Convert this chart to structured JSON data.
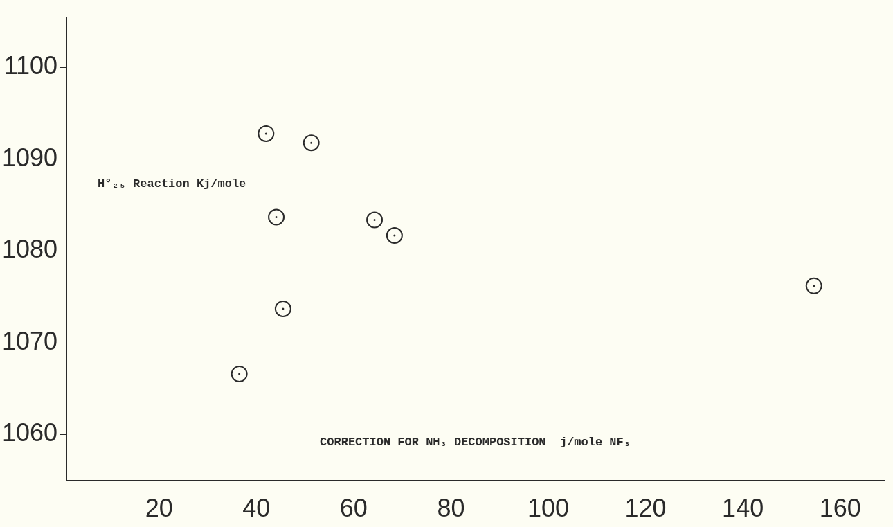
{
  "chart_data": {
    "type": "scatter",
    "xlabel": "CORRECTION FOR NH₃ DECOMPOSITION  j/mole NF₃",
    "ylabel": "H°₂₅ Reaction Kj/mole",
    "series": [
      {
        "color": "#2a2a2a",
        "x": [
          42.0,
          51.3,
          44.1,
          64.3,
          68.4,
          45.5,
          36.5,
          154.6
        ],
        "values": [
          1092.8,
          1091.8,
          1083.7,
          1083.4,
          1081.7,
          1073.7,
          1066.6,
          1076.2
        ]
      }
    ],
    "xlim": [
      1,
      169
    ],
    "xticks": [
      20,
      40,
      60,
      80,
      100,
      120,
      140,
      160
    ],
    "ylim": [
      1055,
      1105.5
    ],
    "yticks": [
      1060,
      1070,
      1080,
      1090,
      1100
    ],
    "grid": false,
    "legend": false,
    "marker": "circle"
  }
}
